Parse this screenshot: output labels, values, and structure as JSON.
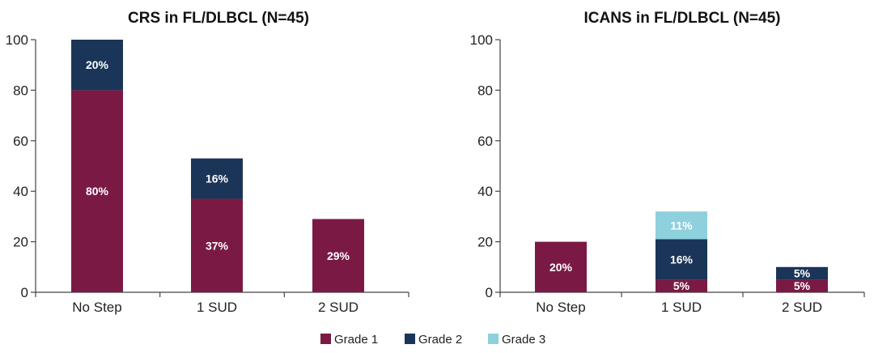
{
  "colors": {
    "grade1": "#7a1a44",
    "grade2": "#1a3558",
    "grade3": "#8fd0dd"
  },
  "legend": [
    {
      "key": "grade1",
      "label": "Grade 1"
    },
    {
      "key": "grade2",
      "label": "Grade 2"
    },
    {
      "key": "grade3",
      "label": "Grade 3"
    }
  ],
  "chart_data": [
    {
      "type": "bar",
      "stacked": true,
      "title": "CRS in FL/DLBCL (N=45)",
      "categories": [
        "No Step",
        "1 SUD",
        "2 SUD"
      ],
      "ylim": [
        0,
        100
      ],
      "yticks": [
        0,
        20,
        40,
        60,
        80,
        100
      ],
      "series": [
        {
          "name": "Grade 1",
          "key": "grade1",
          "values": [
            80,
            37,
            29
          ],
          "labels": [
            "80%",
            "37%",
            "29%"
          ]
        },
        {
          "name": "Grade 2",
          "key": "grade2",
          "values": [
            20,
            16,
            0
          ],
          "labels": [
            "20%",
            "16%",
            ""
          ]
        },
        {
          "name": "Grade 3",
          "key": "grade3",
          "values": [
            0,
            0,
            0
          ],
          "labels": [
            "",
            "",
            ""
          ]
        }
      ]
    },
    {
      "type": "bar",
      "stacked": true,
      "title": "ICANS in FL/DLBCL (N=45)",
      "categories": [
        "No Step",
        "1 SUD",
        "2 SUD"
      ],
      "ylim": [
        0,
        100
      ],
      "yticks": [
        0,
        20,
        40,
        60,
        80,
        100
      ],
      "series": [
        {
          "name": "Grade 1",
          "key": "grade1",
          "values": [
            20,
            5,
            5
          ],
          "labels": [
            "20%",
            "5%",
            "5%"
          ]
        },
        {
          "name": "Grade 2",
          "key": "grade2",
          "values": [
            0,
            16,
            5
          ],
          "labels": [
            "",
            "16%",
            "5%"
          ]
        },
        {
          "name": "Grade 3",
          "key": "grade3",
          "values": [
            0,
            11,
            0
          ],
          "labels": [
            "",
            "11%",
            ""
          ]
        }
      ]
    }
  ]
}
